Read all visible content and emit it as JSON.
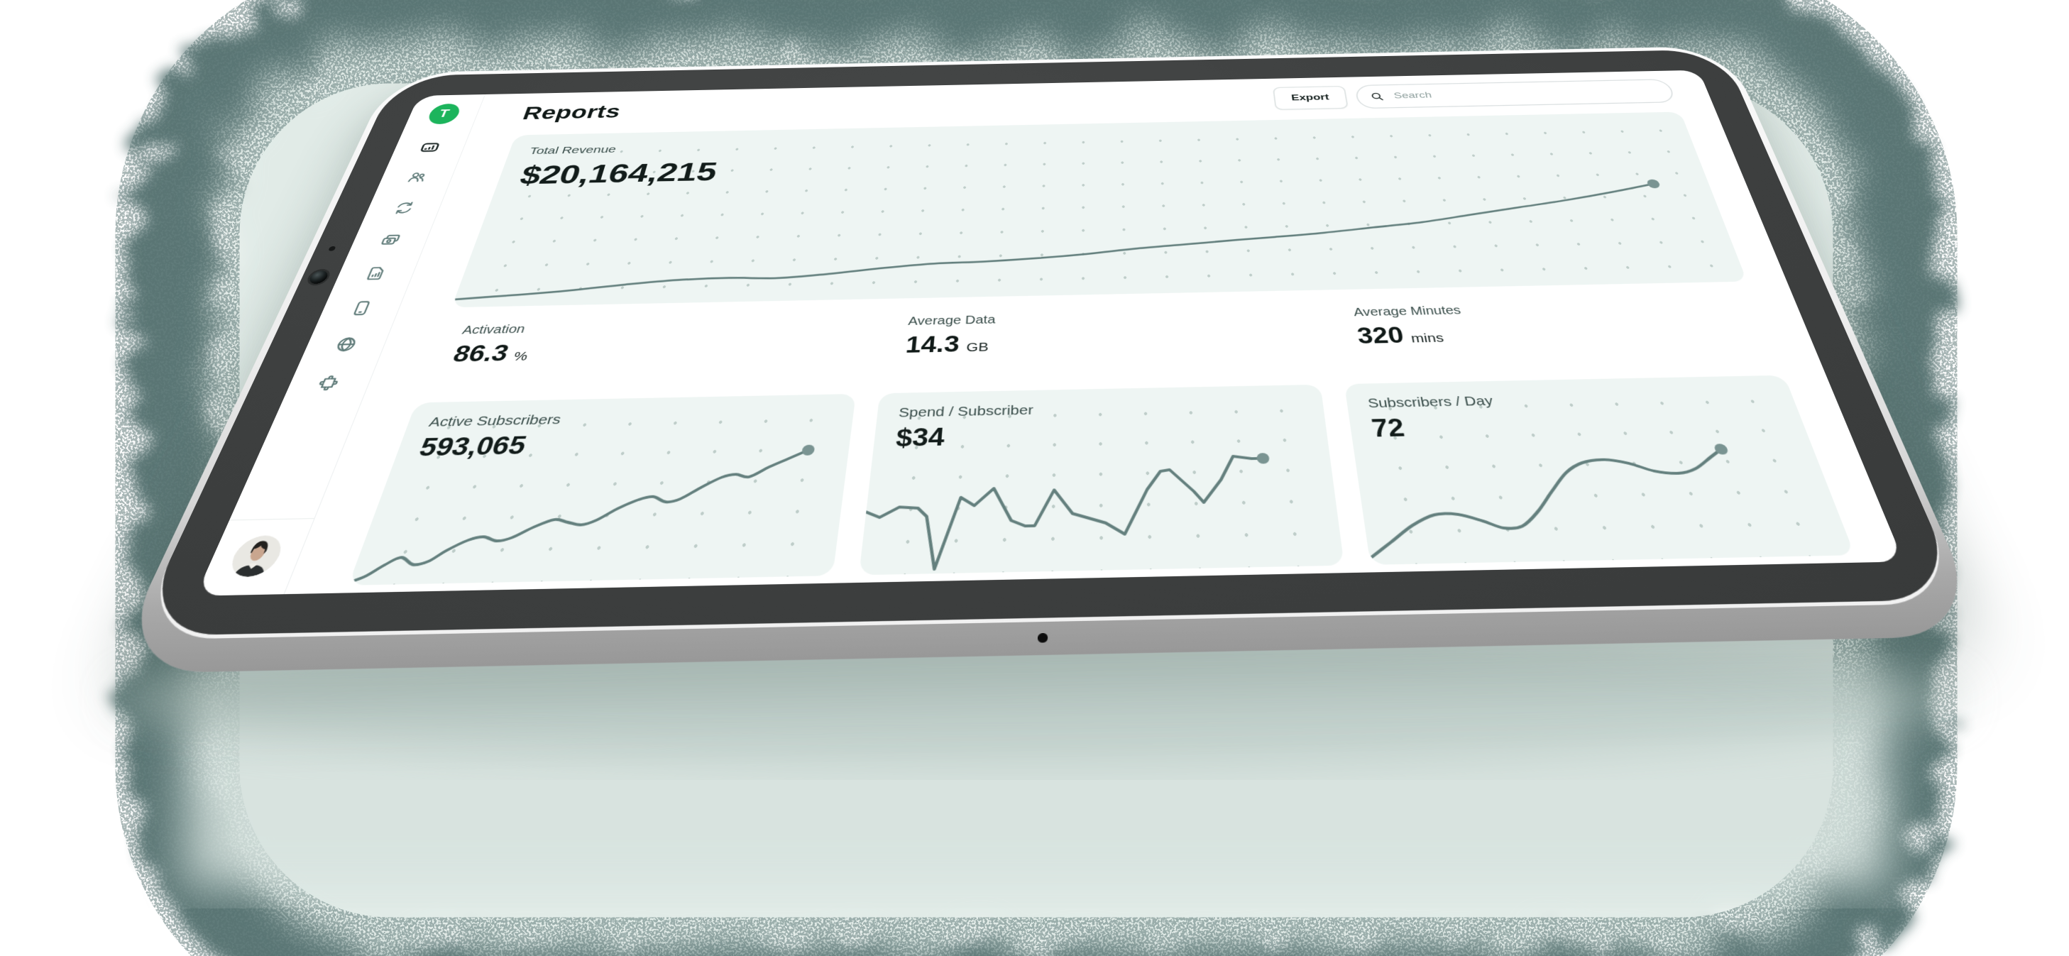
{
  "header": {
    "title": "Reports",
    "export_label": "Export",
    "search_placeholder": "Search"
  },
  "sidebar": {
    "logo_letter": "T",
    "items": [
      {
        "name": "usage-meter",
        "active": true
      },
      {
        "name": "customers",
        "active": false
      },
      {
        "name": "sync",
        "active": false
      },
      {
        "name": "billing-cards",
        "active": false
      },
      {
        "name": "sim-card",
        "active": false
      },
      {
        "name": "device",
        "active": false
      },
      {
        "name": "network-globe",
        "active": false
      },
      {
        "name": "integrations-puzzle",
        "active": false
      }
    ]
  },
  "metrics": {
    "hero": {
      "label": "Total Revenue",
      "value": "$20,164,215"
    },
    "stats": [
      {
        "label": "Activation",
        "value": "86.3",
        "unit": "%"
      },
      {
        "label": "Average Data",
        "value": "14.3",
        "unit": "GB"
      },
      {
        "label": "Average Minutes",
        "value": "320",
        "unit": "mins"
      }
    ],
    "cards": [
      {
        "label": "Active Subscribers",
        "value": "593,065"
      },
      {
        "label": "Spend / Subscriber",
        "value": "$34"
      },
      {
        "label": "Subscribers / Day",
        "value": "72"
      }
    ]
  },
  "colors": {
    "accent_green": "#1cb45c",
    "chart_line": "#64807e",
    "chart_dot": "#7a9492",
    "card_bg": "#eef5f3",
    "text_dark": "#121c1a",
    "label": "#3a4e4b",
    "bezel": "#3c3e3e",
    "halo_mint": "#e1ebe7",
    "halo_ring": "#4f6d6c"
  },
  "charts": {
    "revenue": {
      "type": "line",
      "smooth": true,
      "stroke_width": 3.5,
      "dot_radius": 9,
      "points": [
        [
          0,
          96
        ],
        [
          5,
          93
        ],
        [
          9,
          90
        ],
        [
          13,
          86
        ],
        [
          17,
          83
        ],
        [
          21,
          82
        ],
        [
          25,
          83
        ],
        [
          29,
          80
        ],
        [
          33,
          76
        ],
        [
          37,
          73
        ],
        [
          41,
          72
        ],
        [
          45,
          70
        ],
        [
          49,
          67
        ],
        [
          53,
          63
        ],
        [
          57,
          60
        ],
        [
          61,
          57
        ],
        [
          64,
          55
        ],
        [
          68,
          52
        ],
        [
          72,
          48
        ],
        [
          76,
          44
        ],
        [
          80,
          38
        ],
        [
          84,
          32
        ],
        [
          88,
          26
        ],
        [
          92,
          19
        ],
        [
          95.5,
          12
        ]
      ]
    },
    "active_subscribers": {
      "type": "line",
      "smooth": true,
      "stroke_width": 4,
      "dot_radius": 8,
      "points": [
        [
          0,
          99
        ],
        [
          3,
          95
        ],
        [
          6,
          88
        ],
        [
          9,
          83
        ],
        [
          12,
          88
        ],
        [
          15,
          86
        ],
        [
          18,
          79
        ],
        [
          22,
          72
        ],
        [
          25,
          70
        ],
        [
          28,
          73
        ],
        [
          31,
          71
        ],
        [
          35,
          64
        ],
        [
          39,
          59
        ],
        [
          42,
          61
        ],
        [
          45,
          63
        ],
        [
          48,
          60
        ],
        [
          52,
          52
        ],
        [
          56,
          46
        ],
        [
          59,
          44
        ],
        [
          62,
          48
        ],
        [
          65,
          46
        ],
        [
          69,
          38
        ],
        [
          73,
          31
        ],
        [
          76,
          29
        ],
        [
          79,
          31
        ],
        [
          83,
          24
        ],
        [
          87,
          18
        ],
        [
          91,
          12
        ]
      ]
    },
    "spend_per_subscriber": {
      "type": "line",
      "smooth": false,
      "stroke_width": 4,
      "dot_radius": 8,
      "points": [
        [
          0,
          58
        ],
        [
          3,
          62
        ],
        [
          7,
          55
        ],
        [
          11,
          56
        ],
        [
          13,
          62
        ],
        [
          15.5,
          98
        ],
        [
          20,
          49
        ],
        [
          23,
          55
        ],
        [
          27,
          43
        ],
        [
          31,
          66
        ],
        [
          34,
          70
        ],
        [
          36,
          70
        ],
        [
          40,
          45
        ],
        [
          44,
          62
        ],
        [
          46,
          64
        ],
        [
          51,
          69
        ],
        [
          55,
          77
        ],
        [
          60,
          46
        ],
        [
          63,
          33
        ],
        [
          65,
          32
        ],
        [
          70,
          48
        ],
        [
          72,
          56
        ],
        [
          76,
          40
        ],
        [
          79,
          23
        ],
        [
          83,
          25
        ],
        [
          85.5,
          25
        ]
      ]
    },
    "subscribers_per_day": {
      "type": "line",
      "smooth": true,
      "stroke_width": 4,
      "dot_radius": 8,
      "points": [
        [
          0,
          97
        ],
        [
          5,
          86
        ],
        [
          10,
          75
        ],
        [
          15,
          68
        ],
        [
          20,
          68
        ],
        [
          25,
          73
        ],
        [
          29,
          78
        ],
        [
          33,
          77
        ],
        [
          37,
          67
        ],
        [
          41,
          53
        ],
        [
          45,
          40
        ],
        [
          49,
          33
        ],
        [
          54,
          31
        ],
        [
          59,
          34
        ],
        [
          64,
          40
        ],
        [
          69,
          42
        ],
        [
          73,
          39
        ],
        [
          77,
          31
        ],
        [
          80,
          25
        ]
      ]
    }
  }
}
